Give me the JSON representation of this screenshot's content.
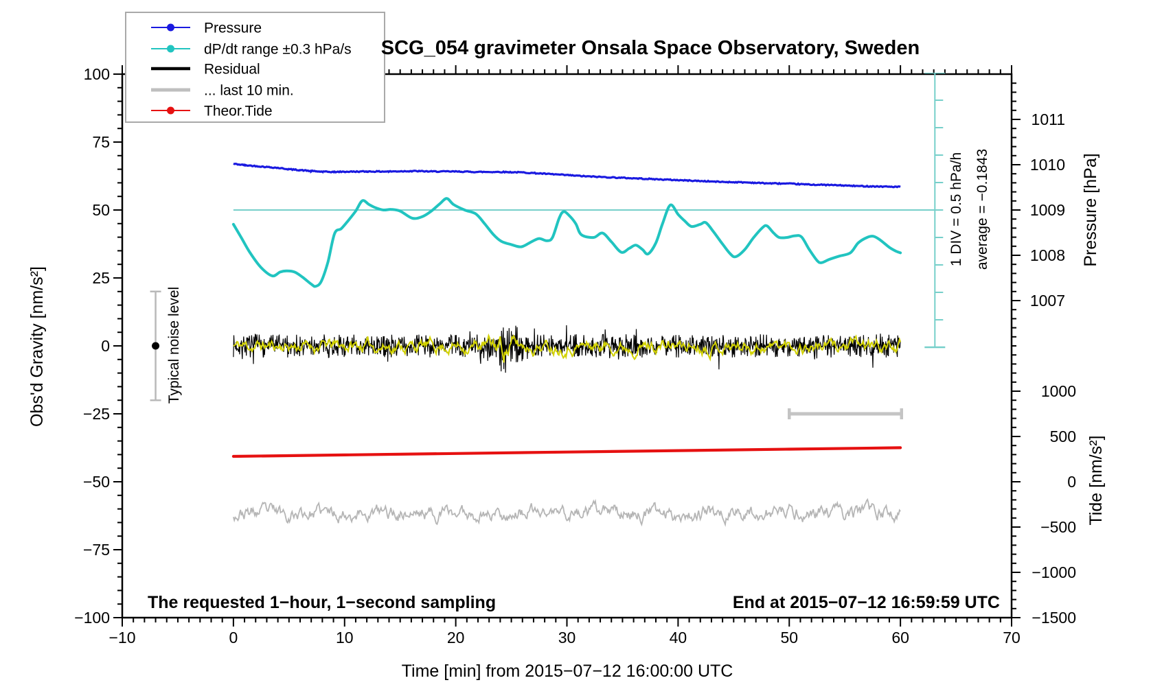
{
  "title": "SCG_054 gravimeter Onsala Space Observatory, Sweden",
  "annotations": {
    "div_scale": "1 DIV = 0.5 hPa/h",
    "average": "average = −0.1843",
    "noise_label": "Typical noise level",
    "sampling_note": "The requested 1−hour, 1−second sampling",
    "end_note": "End at 2015−07−12 16:59:59 UTC"
  },
  "axes": {
    "x": {
      "label": "Time [min] from 2015−07−12 16:00:00 UTC",
      "min": -10,
      "max": 70,
      "minor_step": 1,
      "major_values": [
        -10,
        0,
        10,
        20,
        30,
        40,
        50,
        60,
        70
      ],
      "major_labels": [
        "−10",
        "0",
        "10",
        "20",
        "30",
        "40",
        "50",
        "60",
        "70"
      ]
    },
    "y_left": {
      "label": "Obs'd Gravity [nm/s²]",
      "min": -100,
      "max": 100,
      "minor_step": 5,
      "major_values": [
        100,
        75,
        50,
        25,
        0,
        -25,
        -50,
        -75,
        -100
      ],
      "major_labels": [
        "100",
        "75",
        "50",
        "25",
        "0",
        "−25",
        "−50",
        "−75",
        "−100"
      ]
    },
    "y_right_pressure": {
      "label": "Pressure [hPa]",
      "min": 1006,
      "max": 1012,
      "minor_step": 0.2,
      "major_values": [
        1011,
        1010,
        1009,
        1008,
        1007
      ],
      "major_labels": [
        "1011",
        "1010",
        "1009",
        "1008",
        "1007"
      ]
    },
    "y_right_tide": {
      "label": "Tide [nm/s²]",
      "min": -1500,
      "max": 1500,
      "minor_step": 100,
      "major_values": [
        1000,
        500,
        0,
        -500,
        -1000,
        -1500
      ],
      "major_labels": [
        "1000",
        "500",
        "0",
        "−500",
        "−1000",
        "−1500"
      ]
    }
  },
  "legend": [
    {
      "label": "Pressure",
      "color": "#1a1ae0",
      "marker": "dot",
      "sample_width": 2
    },
    {
      "label": "dP/dt range ±0.3 hPa/s",
      "color": "#21c4c0",
      "marker": "dot",
      "sample_width": 2
    },
    {
      "label": "Residual",
      "color": "#000000",
      "marker": "none",
      "sample_width": 4.5
    },
    {
      "label": "... last 10 min.",
      "color": "#bfbfbf",
      "marker": "none",
      "sample_width": 5
    },
    {
      "label": "Theor.Tide",
      "color": "#e61111",
      "marker": "dot",
      "sample_width": 2
    }
  ],
  "chart_data": {
    "type": "line",
    "x_unit": "minutes",
    "axis_ranges": {
      "x": [
        -10,
        70
      ],
      "gravity_nms2": [
        -100,
        100
      ],
      "pressure_hPa": [
        1006,
        1012
      ],
      "tide_nms2": [
        -1500,
        1500
      ],
      "dpdt_div_hPa_per_h": 0.5
    },
    "series": [
      {
        "id": "pressure",
        "name": "Pressure",
        "axis": "pressure_hPa",
        "color": "#1a1ae0",
        "width": 3.2,
        "points": [
          [
            0,
            1010.02
          ],
          [
            1,
            1009.99
          ],
          [
            2,
            1009.97
          ],
          [
            3,
            1009.95
          ],
          [
            4,
            1009.93
          ],
          [
            5,
            1009.9
          ],
          [
            6,
            1009.88
          ],
          [
            7,
            1009.86
          ],
          [
            8,
            1009.845
          ],
          [
            9,
            1009.84
          ],
          [
            10,
            1009.845
          ],
          [
            12,
            1009.85
          ],
          [
            14,
            1009.85
          ],
          [
            16,
            1009.86
          ],
          [
            18,
            1009.85
          ],
          [
            20,
            1009.85
          ],
          [
            22,
            1009.84
          ],
          [
            24,
            1009.84
          ],
          [
            26,
            1009.83
          ],
          [
            28,
            1009.8
          ],
          [
            30,
            1009.77
          ],
          [
            32,
            1009.74
          ],
          [
            34,
            1009.72
          ],
          [
            36,
            1009.7
          ],
          [
            38,
            1009.68
          ],
          [
            40,
            1009.66
          ],
          [
            42,
            1009.64
          ],
          [
            44,
            1009.62
          ],
          [
            46,
            1009.61
          ],
          [
            48,
            1009.59
          ],
          [
            50,
            1009.58
          ],
          [
            52,
            1009.56
          ],
          [
            54,
            1009.55
          ],
          [
            56,
            1009.53
          ],
          [
            58,
            1009.52
          ],
          [
            60,
            1009.51
          ]
        ],
        "jitter": 0.022
      },
      {
        "id": "dpdt",
        "name": "dP/dt range ±0.3 hPa/s",
        "axis": "dpdt_hPa_per_h",
        "color": "#21c4c0",
        "width": 4,
        "points": [
          [
            0,
            -0.26
          ],
          [
            0.7,
            -0.5
          ],
          [
            1.5,
            -0.78
          ],
          [
            2.5,
            -1.05
          ],
          [
            3.5,
            -1.2
          ],
          [
            4.2,
            -1.13
          ],
          [
            4.8,
            -1.11
          ],
          [
            5.5,
            -1.13
          ],
          [
            6.2,
            -1.22
          ],
          [
            7,
            -1.35
          ],
          [
            7.4,
            -1.39
          ],
          [
            7.9,
            -1.3
          ],
          [
            8.5,
            -0.95
          ],
          [
            9.1,
            -0.43
          ],
          [
            9.7,
            -0.34
          ],
          [
            10.3,
            -0.2
          ],
          [
            11,
            -0.02
          ],
          [
            11.6,
            0.17
          ],
          [
            12.2,
            0.1
          ],
          [
            12.8,
            0.04
          ],
          [
            13.5,
            0.0
          ],
          [
            14.2,
            0.01
          ],
          [
            15,
            -0.02
          ],
          [
            16.1,
            -0.15
          ],
          [
            17,
            -0.12
          ],
          [
            17.8,
            -0.02
          ],
          [
            18.6,
            0.12
          ],
          [
            19.2,
            0.21
          ],
          [
            19.8,
            0.1
          ],
          [
            20.8,
            0.0
          ],
          [
            21.8,
            -0.07
          ],
          [
            22.6,
            -0.25
          ],
          [
            23.4,
            -0.45
          ],
          [
            24.1,
            -0.57
          ],
          [
            25,
            -0.63
          ],
          [
            25.9,
            -0.67
          ],
          [
            26.8,
            -0.58
          ],
          [
            27.5,
            -0.52
          ],
          [
            28.2,
            -0.56
          ],
          [
            28.7,
            -0.5
          ],
          [
            29.3,
            -0.15
          ],
          [
            29.7,
            -0.03
          ],
          [
            30.2,
            -0.1
          ],
          [
            30.8,
            -0.25
          ],
          [
            31.3,
            -0.45
          ],
          [
            32.4,
            -0.5
          ],
          [
            33.2,
            -0.42
          ],
          [
            34,
            -0.58
          ],
          [
            34.9,
            -0.77
          ],
          [
            35.6,
            -0.7
          ],
          [
            36.2,
            -0.64
          ],
          [
            36.8,
            -0.72
          ],
          [
            37.3,
            -0.8
          ],
          [
            38,
            -0.6
          ],
          [
            38.6,
            -0.25
          ],
          [
            39.3,
            0.09
          ],
          [
            40,
            -0.08
          ],
          [
            40.6,
            -0.2
          ],
          [
            41.2,
            -0.3
          ],
          [
            42,
            -0.26
          ],
          [
            42.5,
            -0.23
          ],
          [
            43.2,
            -0.4
          ],
          [
            44,
            -0.62
          ],
          [
            44.7,
            -0.8
          ],
          [
            45.2,
            -0.85
          ],
          [
            46,
            -0.72
          ],
          [
            46.8,
            -0.5
          ],
          [
            47.6,
            -0.32
          ],
          [
            48,
            -0.29
          ],
          [
            48.6,
            -0.42
          ],
          [
            49.1,
            -0.5
          ],
          [
            49.8,
            -0.5
          ],
          [
            50.5,
            -0.47
          ],
          [
            51.1,
            -0.49
          ],
          [
            51.8,
            -0.72
          ],
          [
            52.5,
            -0.92
          ],
          [
            52.9,
            -0.96
          ],
          [
            53.6,
            -0.9
          ],
          [
            54.5,
            -0.84
          ],
          [
            55.5,
            -0.78
          ],
          [
            56.2,
            -0.6
          ],
          [
            57,
            -0.5
          ],
          [
            57.6,
            -0.48
          ],
          [
            58.2,
            -0.55
          ],
          [
            59,
            -0.68
          ],
          [
            59.6,
            -0.75
          ],
          [
            60,
            -0.78
          ]
        ]
      },
      {
        "id": "theor_tide",
        "name": "Theor.Tide",
        "axis": "tide_nms2",
        "color": "#e61111",
        "width": 4.2,
        "points": [
          [
            0,
            280
          ],
          [
            10,
            296
          ],
          [
            20,
            312
          ],
          [
            30,
            328
          ],
          [
            40,
            344
          ],
          [
            50,
            360
          ],
          [
            60,
            376
          ]
        ]
      },
      {
        "id": "residual",
        "name": "Residual",
        "axis": "gravity_nms2",
        "color": "#000000",
        "width": 1.2,
        "noise": {
          "mean": 0,
          "amp": 2.1,
          "spike_amp": 5.5,
          "spike_prob": 0.03,
          "burst_center": 24.4,
          "burst_width": 1.3,
          "burst_gain": 1.4,
          "dt": 0.04,
          "seed": 7
        }
      },
      {
        "id": "residual_smooth",
        "name": "residual lowpass",
        "axis": "gravity_nms2",
        "color": "#d2d200",
        "width": 2,
        "noise": {
          "mean": 0,
          "amp": 2.6,
          "walk": 0.82,
          "burst_center": 24.3,
          "burst_width": 1.2,
          "burst_gain": 1.1,
          "dt": 0.08,
          "seed": 11
        }
      },
      {
        "id": "last10",
        "name": "... last 10 min.",
        "axis": "gravity_nms2",
        "color": "#b5b5b5",
        "width": 1.8,
        "noise": {
          "mean": -61.5,
          "amp": 3.1,
          "walk": 0.78,
          "burst_center": 0,
          "burst_width": 1,
          "burst_gain": 0,
          "dt": 0.08,
          "seed": 23
        }
      }
    ],
    "markers": {
      "noise_errorbar": {
        "t": -7,
        "center_gravity": 0,
        "half_range": 20,
        "color": "#b9b9b9"
      },
      "last10_bar": {
        "t_from": 50,
        "t_to": 60.1,
        "gravity": -25,
        "color": "#c4c4c4"
      },
      "dpdt_zero_line": {
        "value": 0,
        "color": "#76cfca"
      },
      "dpdt_ruler": {
        "t": 63.1,
        "divisions": 10,
        "div_value_hPa_per_h": 0.5,
        "color": "#76cfca"
      }
    }
  }
}
